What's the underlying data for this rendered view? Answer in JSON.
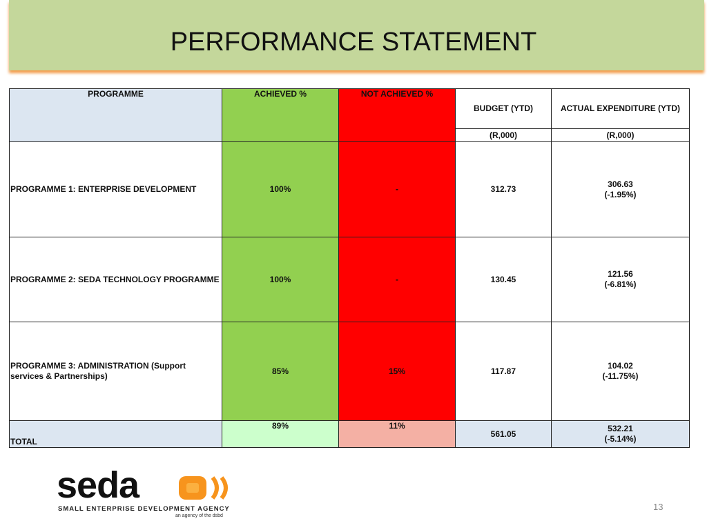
{
  "header": {
    "title": "PERFORMANCE STATEMENT"
  },
  "table": {
    "columns": [
      "PROGRAMME",
      "ACHIEVED %",
      "NOT ACHIEVED %",
      "BUDGET (YTD)",
      "ACTUAL EXPENDITURE (YTD)"
    ],
    "units": [
      "(R,000)",
      "(R,000)"
    ],
    "rows": [
      [
        "PROGRAMME 1: ENTERPRISE DEVELOPMENT",
        "100%",
        "-",
        "312.73",
        [
          "306.63",
          "(-1.95%)"
        ]
      ],
      [
        "PROGRAMME 2: SEDA TECHNOLOGY PROGRAMME",
        "100%",
        "-",
        "130.45",
        [
          "121.56",
          "(-6.81%)"
        ]
      ],
      [
        "PROGRAMME 3: ADMINISTRATION (Support services & Partnerships)",
        "85%",
        "15%",
        "117.87",
        [
          "104.02",
          "(-11.75%)"
        ]
      ]
    ],
    "total": [
      "TOTAL",
      "89%",
      "11%",
      "561.05",
      [
        "532.21",
        "(-5.14%)"
      ]
    ]
  },
  "footer": {
    "logo": "seda",
    "agency": "SMALL ENTERPRISE DEVELOPMENT AGENCY",
    "tagline": "an agency of the dsbd",
    "page": "13"
  }
}
